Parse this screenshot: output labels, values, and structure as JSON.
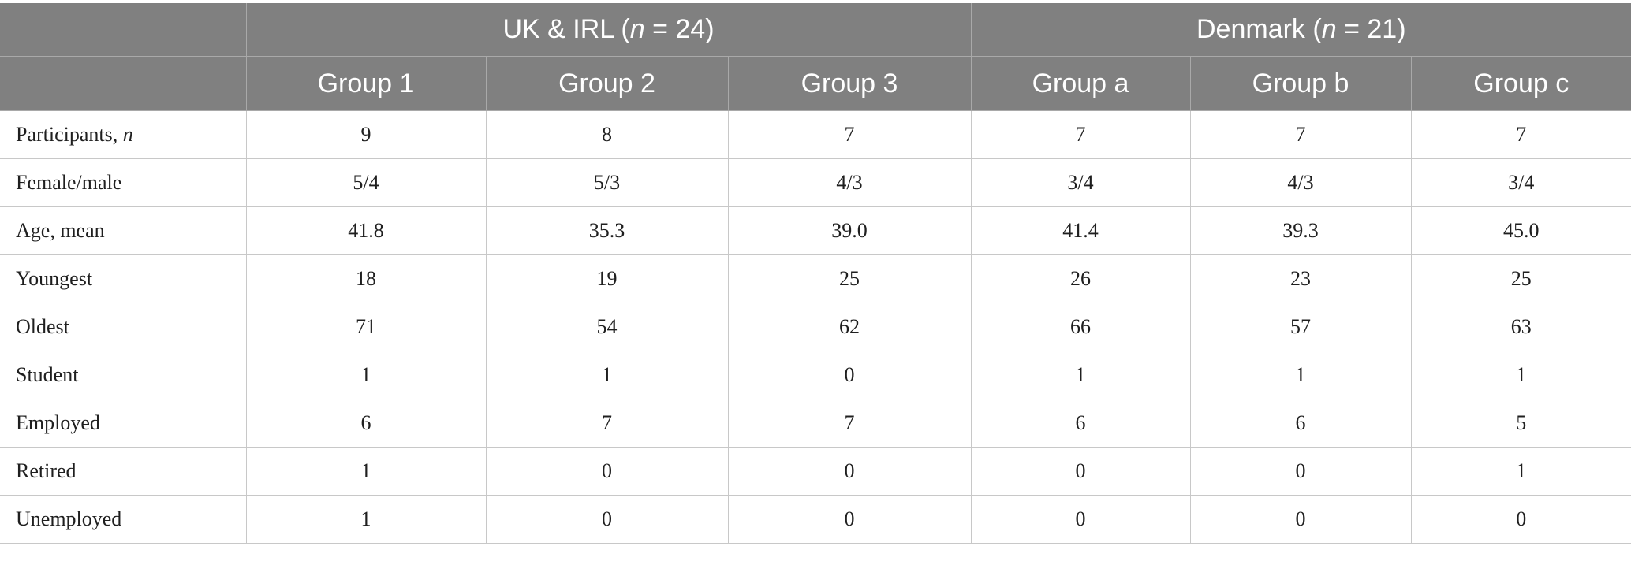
{
  "header": {
    "region_groups": [
      {
        "name": "UK & IRL (",
        "n_symbol": "n",
        "n_suffix": " = 24)"
      },
      {
        "name": "Denmark (",
        "n_symbol": "n",
        "n_suffix": " = 21)"
      }
    ],
    "columns": [
      "Group 1",
      "Group 2",
      "Group 3",
      "Group a",
      "Group b",
      "Group c"
    ]
  },
  "rows": [
    {
      "label": "Participants, ",
      "label_italic": "n",
      "values": [
        "9",
        "8",
        "7",
        "7",
        "7",
        "7"
      ]
    },
    {
      "label": "Female/male",
      "label_italic": "",
      "values": [
        "5/4",
        "5/3",
        "4/3",
        "3/4",
        "4/3",
        "3/4"
      ]
    },
    {
      "label": "Age, mean",
      "label_italic": "",
      "values": [
        "41.8",
        "35.3",
        "39.0",
        "41.4",
        "39.3",
        "45.0"
      ]
    },
    {
      "label": "Youngest",
      "label_italic": "",
      "values": [
        "18",
        "19",
        "25",
        "26",
        "23",
        "25"
      ]
    },
    {
      "label": "Oldest",
      "label_italic": "",
      "values": [
        "71",
        "54",
        "62",
        "66",
        "57",
        "63"
      ]
    },
    {
      "label": "Student",
      "label_italic": "",
      "values": [
        "1",
        "1",
        "0",
        "1",
        "1",
        "1"
      ]
    },
    {
      "label": "Employed",
      "label_italic": "",
      "values": [
        "6",
        "7",
        "7",
        "6",
        "6",
        "5"
      ]
    },
    {
      "label": "Retired",
      "label_italic": "",
      "values": [
        "1",
        "0",
        "0",
        "0",
        "0",
        "1"
      ]
    },
    {
      "label": "Unemployed",
      "label_italic": "",
      "values": [
        "1",
        "0",
        "0",
        "0",
        "0",
        "0"
      ]
    }
  ]
}
